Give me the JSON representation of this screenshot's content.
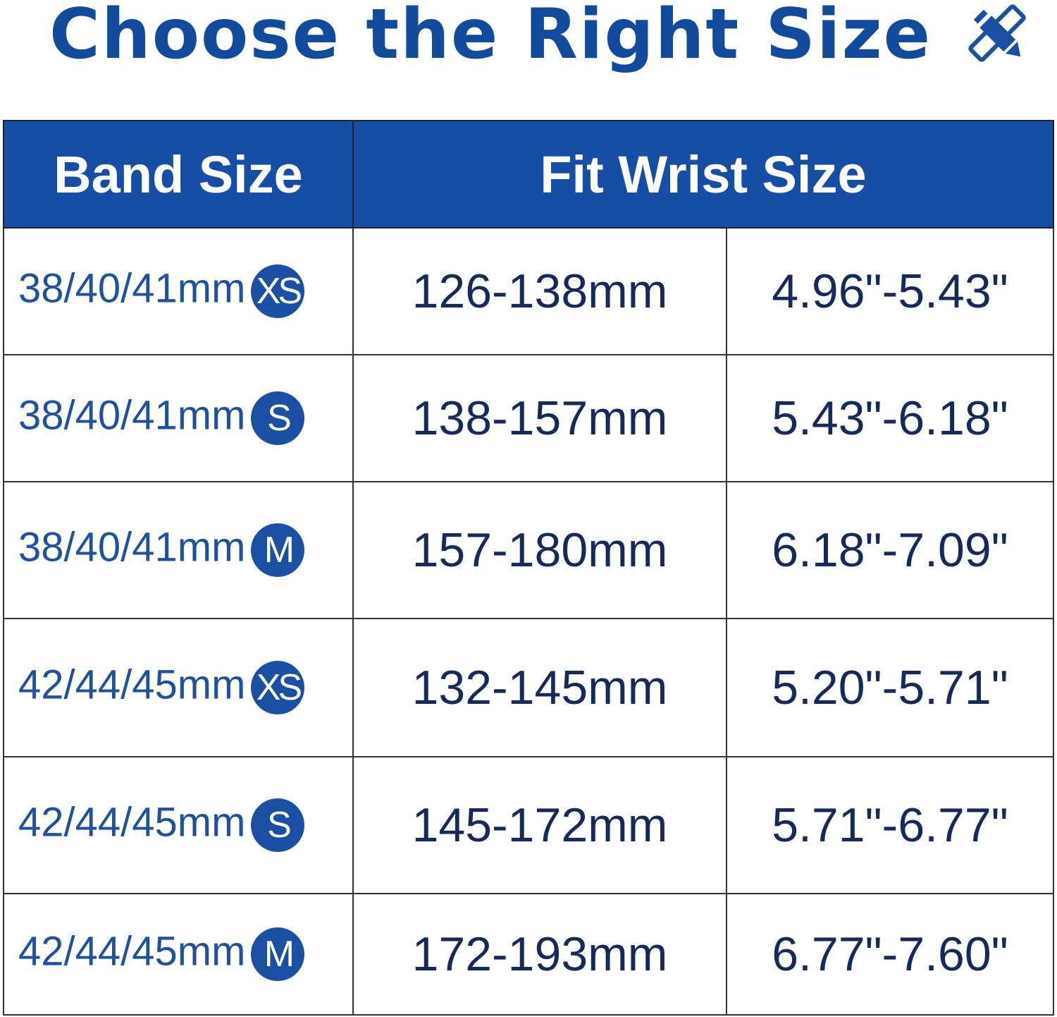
{
  "title": "Choose the Right Size",
  "title_icon": "ruler-pencil-icon",
  "colors": {
    "header_bg": "#164ea6",
    "title": "#134b9c",
    "band_text": "#1f50a2",
    "value_text": "#152a5b"
  },
  "table": {
    "headers": {
      "band": "Band Size",
      "fit": "Fit Wrist Size"
    },
    "rows": [
      {
        "band": "38/40/41mm",
        "size": "XS",
        "mm": "126-138mm",
        "inch": "4.96\"-5.43\""
      },
      {
        "band": "38/40/41mm",
        "size": "S",
        "mm": "138-157mm",
        "inch": "5.43\"-6.18\""
      },
      {
        "band": "38/40/41mm",
        "size": "M",
        "mm": "157-180mm",
        "inch": "6.18\"-7.09\""
      },
      {
        "band": "42/44/45mm",
        "size": "XS",
        "mm": "132-145mm",
        "inch": "5.20\"-5.71\""
      },
      {
        "band": "42/44/45mm",
        "size": "S",
        "mm": "145-172mm",
        "inch": "5.71\"-6.77\""
      },
      {
        "band": "42/44/45mm",
        "size": "M",
        "mm": "172-193mm",
        "inch": "6.77\"-7.60\""
      }
    ]
  }
}
